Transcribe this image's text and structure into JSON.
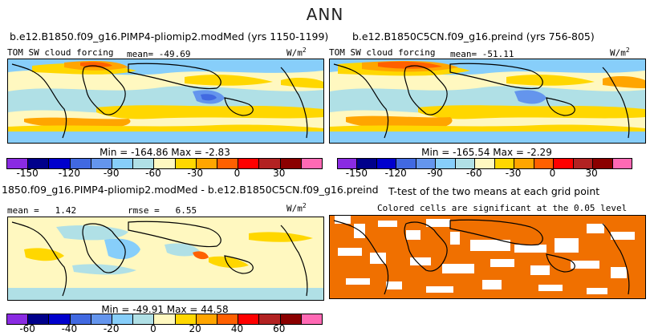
{
  "title": "ANN",
  "panels": {
    "top_left": {
      "title": "b.e12.B1850.f09_g16.PIMP4-pliomip2.modMed (yrs 1150-1199)",
      "variable": "TOM SW cloud forcing",
      "stat_label": "mean=",
      "stat_value": "-49.69",
      "units": "W/m",
      "units_sup": "2",
      "minmax": "Min = -164.86 Max = -2.83"
    },
    "top_right": {
      "title": "b.e12.B1850C5CN.f09_g16.preind (yrs 756-805)",
      "variable": "TOM SW cloud forcing",
      "stat_label": "mean=",
      "stat_value": "-51.11",
      "units": "W/m",
      "units_sup": "2",
      "minmax": "Min = -165.54 Max = -2.29"
    },
    "bottom_left": {
      "title": "1850.f09_g16.PIMP4-pliomip2.modMed - b.e12.B1850C5CN.f09_g16.preind",
      "stat_label": "mean =",
      "stat_value": "1.42",
      "rmse_label": "rmse =",
      "rmse_value": "6.55",
      "units": "W/m",
      "units_sup": "2",
      "minmax": "Min = -49.91 Max = 44.58"
    },
    "bottom_right": {
      "title": "T-test of the two means at each grid point",
      "subtitle": "Colored cells are significant at the 0.05 level"
    }
  },
  "colorbar_abs": {
    "colors": [
      "#8a2be2",
      "#00008b",
      "#0000cd",
      "#4169e1",
      "#6495ed",
      "#87cefa",
      "#b0e0e6",
      "#fff8c0",
      "#ffd700",
      "#ffa500",
      "#ff6000",
      "#ff0000",
      "#b22222",
      "#8b0000",
      "#ff69b4"
    ],
    "ticks": [
      "-150",
      "-120",
      "-90",
      "-60",
      "-30",
      "0",
      "30"
    ]
  },
  "colorbar_diff": {
    "colors": [
      "#8a2be2",
      "#00008b",
      "#0000cd",
      "#4169e1",
      "#6495ed",
      "#87cefa",
      "#b0e0e6",
      "#fff8c0",
      "#ffd700",
      "#ffa500",
      "#ff6000",
      "#ff0000",
      "#b22222",
      "#8b0000",
      "#ff69b4"
    ],
    "ticks": [
      "-60",
      "-40",
      "-20",
      "0",
      "20",
      "40",
      "60"
    ]
  },
  "colors": {
    "ttest_fill": "#f07000",
    "land_outline": "#000000"
  }
}
